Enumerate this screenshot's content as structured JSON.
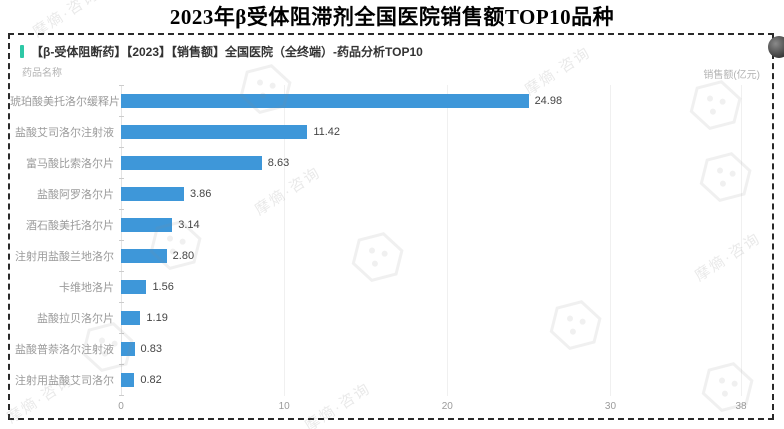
{
  "page_title": "2023年β受体阻滞剂全国医院销售额TOP10品种",
  "panel": {
    "header_title": "【β-受体阻断药】【2023】【销售额】全国医院（全终端）-药品分析TOP10",
    "y_axis_name": "药品名称",
    "x_axis_name": "销售额(亿元)"
  },
  "chart_data": {
    "type": "bar",
    "orientation": "horizontal",
    "title": "【β-受体阻断药】【2023】【销售额】全国医院（全终端）-药品分析TOP10",
    "categories": [
      "琥珀酸美托洛尔缓释片",
      "盐酸艾司洛尔注射液",
      "富马酸比索洛尔片",
      "盐酸阿罗洛尔片",
      "酒石酸美托洛尔片",
      "注射用盐酸兰地洛尔",
      "卡维地洛片",
      "盐酸拉贝洛尔片",
      "盐酸普萘洛尔注射液",
      "注射用盐酸艾司洛尔"
    ],
    "values": [
      24.98,
      11.42,
      8.63,
      3.86,
      3.14,
      2.8,
      1.56,
      1.19,
      0.83,
      0.82
    ],
    "value_labels": [
      "24.98",
      "11.42",
      "8.63",
      "3.86",
      "3.14",
      "2.80",
      "1.56",
      "1.19",
      "0.83",
      "0.82"
    ],
    "xlabel": "销售额(亿元)",
    "ylabel": "药品名称",
    "xlim": [
      0,
      38
    ],
    "x_ticks": [
      0,
      10,
      20,
      30,
      38
    ],
    "grid": true,
    "legend": false,
    "bar_color": "#3E97D9",
    "accent_color": "#2EC8A6"
  },
  "watermark": {
    "text": "摩熵·咨询"
  }
}
